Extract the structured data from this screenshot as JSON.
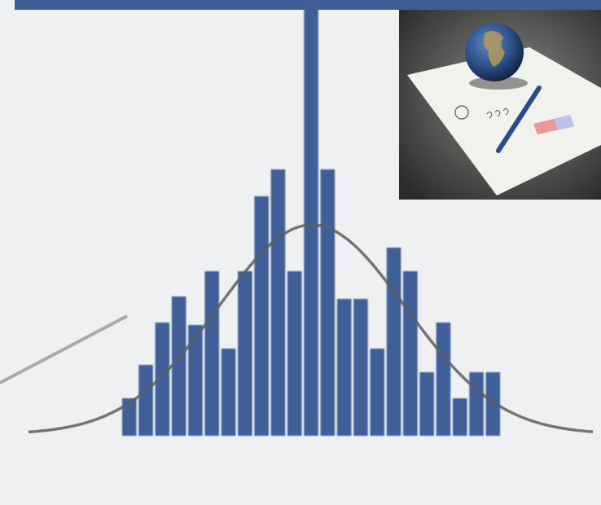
{
  "chart_data": {
    "type": "bar",
    "categories": [
      null,
      null,
      null,
      null,
      null,
      null,
      null,
      null,
      null,
      null,
      null,
      null,
      null,
      null,
      null,
      null,
      null,
      null,
      null,
      null,
      null,
      null,
      null
    ],
    "values": [
      46,
      87,
      139,
      171,
      136,
      202,
      107,
      202,
      294,
      327,
      202,
      535,
      327,
      168,
      168,
      107,
      231,
      202,
      78,
      139,
      46,
      78,
      78
    ],
    "color": "#3f5f98",
    "ylim": [
      0,
      535
    ]
  }
}
